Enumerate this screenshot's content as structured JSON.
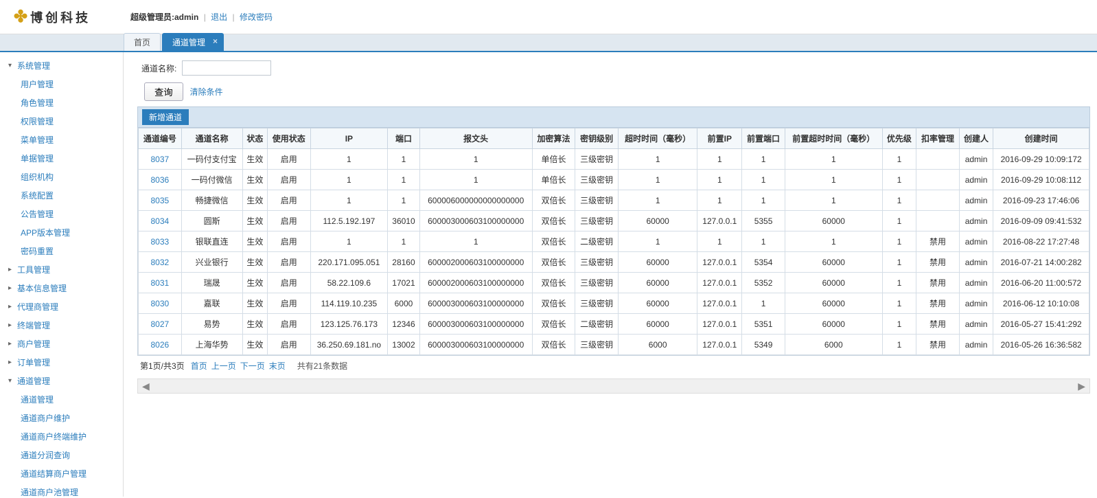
{
  "header": {
    "logo_text": "博创科技",
    "user_prefix": "超级管理员:",
    "user_name": "admin",
    "logout": "退出",
    "change_pwd": "修改密码"
  },
  "tabs": {
    "home": "首页",
    "active": "通道管理"
  },
  "sidebar": {
    "system": {
      "label": "系统管理",
      "expanded": true,
      "children": [
        "用户管理",
        "角色管理",
        "权限管理",
        "菜单管理",
        "单据管理",
        "组织机构",
        "系统配置",
        "公告管理",
        "APP版本管理",
        "密码重置"
      ]
    },
    "menus": [
      "工具管理",
      "基本信息管理",
      "代理商管理",
      "终端管理",
      "商户管理",
      "订单管理"
    ],
    "channel": {
      "label": "通道管理",
      "expanded": true,
      "children": [
        "通道管理",
        "通道商户维护",
        "通道商户终端维护",
        "通道分润查询",
        "通道结算商户管理",
        "通道商户池管理"
      ]
    }
  },
  "search": {
    "label": "通道名称:",
    "button": "查询",
    "clear": "清除条件",
    "add": "新增通道"
  },
  "table": {
    "columns": [
      "通道编号",
      "通道名称",
      "状态",
      "使用状态",
      "IP",
      "端口",
      "报文头",
      "加密算法",
      "密钥级别",
      "超时时间（毫秒）",
      "前置IP",
      "前置端口",
      "前置超时时间（毫秒）",
      "优先级",
      "扣率管理",
      "创建人",
      "创建时间"
    ],
    "rows": [
      [
        "8037",
        "一码付支付宝",
        "生效",
        "启用",
        "1",
        "1",
        "1",
        "单倍长",
        "三级密钥",
        "1",
        "1",
        "1",
        "1",
        "1",
        "",
        "admin",
        "2016-09-29 10:09:172"
      ],
      [
        "8036",
        "一码付微信",
        "生效",
        "启用",
        "1",
        "1",
        "1",
        "单倍长",
        "三级密钥",
        "1",
        "1",
        "1",
        "1",
        "1",
        "",
        "admin",
        "2016-09-29 10:08:112"
      ],
      [
        "8035",
        "畅捷微信",
        "生效",
        "启用",
        "1",
        "1",
        "600006000000000000000",
        "双倍长",
        "三级密钥",
        "1",
        "1",
        "1",
        "1",
        "1",
        "",
        "admin",
        "2016-09-23 17:46:06"
      ],
      [
        "8034",
        "圆斯",
        "生效",
        "启用",
        "112.5.192.197",
        "36010",
        "600003000603100000000",
        "双倍长",
        "三级密钥",
        "60000",
        "127.0.0.1",
        "5355",
        "60000",
        "1",
        "",
        "admin",
        "2016-09-09 09:41:532"
      ],
      [
        "8033",
        "银联直连",
        "生效",
        "启用",
        "1",
        "1",
        "1",
        "双倍长",
        "二级密钥",
        "1",
        "1",
        "1",
        "1",
        "1",
        "禁用",
        "admin",
        "2016-08-22 17:27:48"
      ],
      [
        "8032",
        "兴业银行",
        "生效",
        "启用",
        "220.171.095.051",
        "28160",
        "600002000603100000000",
        "双倍长",
        "三级密钥",
        "60000",
        "127.0.0.1",
        "5354",
        "60000",
        "1",
        "禁用",
        "admin",
        "2016-07-21 14:00:282"
      ],
      [
        "8031",
        "瑞晟",
        "生效",
        "启用",
        "58.22.109.6",
        "17021",
        "600002000603100000000",
        "双倍长",
        "三级密钥",
        "60000",
        "127.0.0.1",
        "5352",
        "60000",
        "1",
        "禁用",
        "admin",
        "2016-06-20 11:00:572"
      ],
      [
        "8030",
        "嘉联",
        "生效",
        "启用",
        "114.119.10.235",
        "6000",
        "600003000603100000000",
        "双倍长",
        "三级密钥",
        "60000",
        "127.0.0.1",
        "1",
        "60000",
        "1",
        "禁用",
        "admin",
        "2016-06-12 10:10:08"
      ],
      [
        "8027",
        "易势",
        "生效",
        "启用",
        "123.125.76.173",
        "12346",
        "600003000603100000000",
        "双倍长",
        "二级密钥",
        "60000",
        "127.0.0.1",
        "5351",
        "60000",
        "1",
        "禁用",
        "admin",
        "2016-05-27 15:41:292"
      ],
      [
        "8026",
        "上海华势",
        "生效",
        "启用",
        "36.250.69.181.no",
        "13002",
        "600003000603100000000",
        "双倍长",
        "三级密钥",
        "6000",
        "127.0.0.1",
        "5349",
        "6000",
        "1",
        "禁用",
        "admin",
        "2016-05-26 16:36:582"
      ]
    ]
  },
  "pagination": {
    "info": "第1页/共3页",
    "first": "首页",
    "prev": "上一页",
    "next": "下一页",
    "last": "末页",
    "count": "共有21条数据"
  }
}
